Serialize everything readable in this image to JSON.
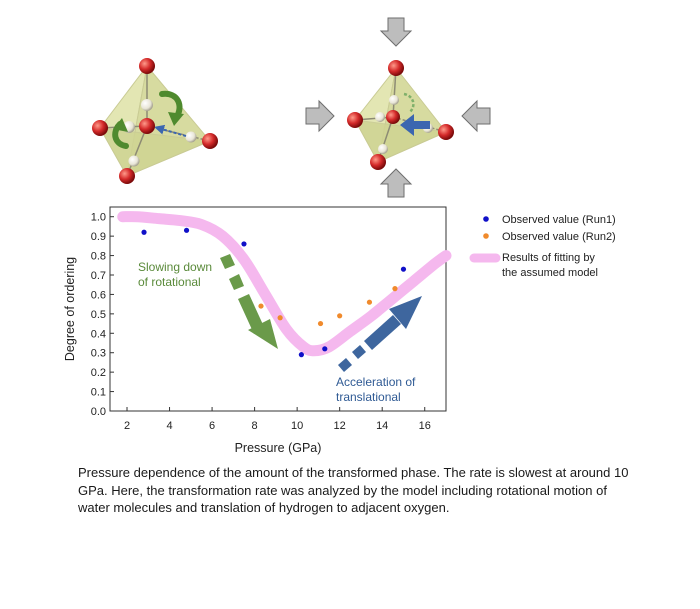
{
  "chart_data": {
    "type": "scatter",
    "xlabel": "Pressure (GPa)",
    "ylabel": "Degree of ordering",
    "xlim": [
      1.2,
      17.0
    ],
    "ylim": [
      0.0,
      1.05
    ],
    "x_ticks": [
      "2",
      "4",
      "6",
      "8",
      "10",
      "12",
      "14",
      "16"
    ],
    "y_ticks": [
      "0.0",
      "0.1",
      "0.2",
      "0.3",
      "0.4",
      "0.5",
      "0.6",
      "0.7",
      "0.8",
      "0.9",
      "1.0"
    ],
    "series": [
      {
        "name": "Observed value (Run1)",
        "color": "#1010c8",
        "x": [
          2.8,
          4.8,
          7.5,
          10.2,
          11.3,
          15.0
        ],
        "y": [
          0.92,
          0.93,
          0.86,
          0.29,
          0.32,
          0.73
        ]
      },
      {
        "name": "Observed value (Run2)",
        "color": "#f08a2c",
        "x": [
          8.3,
          9.2,
          11.1,
          12.0,
          13.4,
          14.6
        ],
        "y": [
          0.54,
          0.48,
          0.45,
          0.49,
          0.56,
          0.63
        ]
      },
      {
        "name": "Results of fitting by the assumed model",
        "color": "#f5b8ee",
        "line": true,
        "x": [
          1.8,
          2.5,
          3.5,
          4.5,
          5.5,
          6.5,
          7.5,
          8.5,
          9.5,
          10.3,
          10.8,
          11.5,
          12.5,
          13.5,
          14.5,
          15.5,
          16.5,
          17.0
        ],
        "y": [
          1.0,
          1.0,
          0.99,
          0.98,
          0.96,
          0.9,
          0.78,
          0.6,
          0.42,
          0.33,
          0.31,
          0.33,
          0.41,
          0.49,
          0.58,
          0.67,
          0.76,
          0.8
        ]
      }
    ],
    "legend_position": "top-right",
    "annotations": [
      {
        "name": "rotational",
        "lines": [
          "Slowing down",
          "of rotational"
        ],
        "color": "#5a8a3a"
      },
      {
        "name": "translational",
        "lines": [
          "Acceleration of",
          "translational"
        ],
        "color": "#2f5a94"
      }
    ],
    "legend_lines": {
      "run1": "Observed value (Run1)",
      "run2": "Observed value (Run2)",
      "fit": [
        "Results of fitting by",
        "the assumed model"
      ]
    }
  },
  "caption": "Pressure dependence of the amount of the transformed phase. The rate is slowest at around 10 GPa. Here, the transformation rate was analyzed by the model including rotational motion of water molecules and translation of hydrogen to adjacent oxygen.",
  "colors": {
    "tetra_fill": "#e6e8b8",
    "oxygen": "#d42a2a",
    "hydrogen": "#f1efe4",
    "green_arrow": "#4f8a2e",
    "blue_arrow": "#3b66b0",
    "pressure_arrow": "#b8b8b8"
  }
}
